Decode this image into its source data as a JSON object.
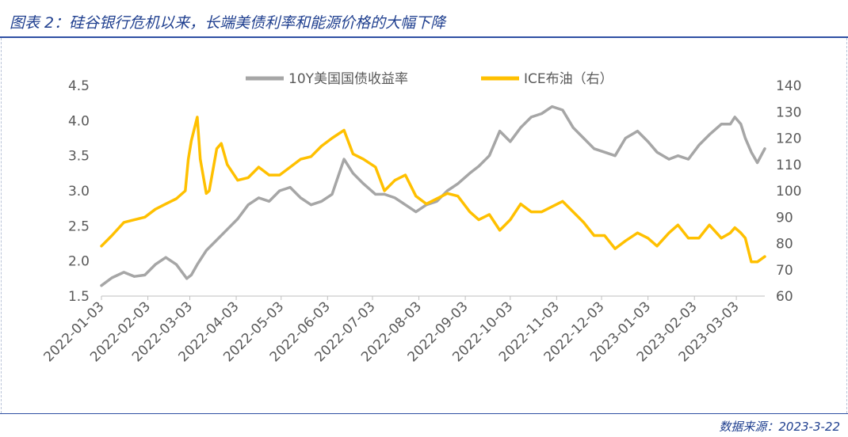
{
  "header": {
    "title": "图表 2：硅谷银行危机以来，长端美债利率和能源价格的大幅下降"
  },
  "footer": {
    "source": "数据来源：2023-3-22"
  },
  "colors": {
    "accent": "#2e4fa3",
    "treasury_series": "#a6a6a6",
    "oil_series": "#ffc000",
    "axis_text": "#595959"
  },
  "chart_data": {
    "type": "line",
    "legend_position": "top-center",
    "grid": false,
    "y_left": {
      "ylim": [
        1.5,
        4.5
      ],
      "ticks": [
        "1.5",
        "2.0",
        "2.5",
        "3.0",
        "3.5",
        "4.0",
        "4.5"
      ]
    },
    "y_right": {
      "ylim": [
        60,
        140
      ],
      "ticks": [
        "60",
        "70",
        "80",
        "90",
        "100",
        "110",
        "120",
        "130",
        "140"
      ]
    },
    "x_ticks": [
      "2022-01-03",
      "2022-02-03",
      "2022-03-03",
      "2022-04-03",
      "2022-05-03",
      "2022-06-03",
      "2022-07-03",
      "2022-08-03",
      "2022-09-03",
      "2022-10-03",
      "2022-11-03",
      "2022-12-03",
      "2023-01-03",
      "2023-02-03",
      "2023-03-03"
    ],
    "x_range": [
      "2022-01-03",
      "2023-03-22"
    ],
    "series": [
      {
        "name": "10Y美国国债收益率",
        "axis": "left",
        "color": "#a6a6a6",
        "x": [
          "2022-01-03",
          "2022-01-10",
          "2022-01-18",
          "2022-01-25",
          "2022-02-01",
          "2022-02-08",
          "2022-02-15",
          "2022-02-22",
          "2022-03-01",
          "2022-03-04",
          "2022-03-08",
          "2022-03-14",
          "2022-03-21",
          "2022-03-28",
          "2022-04-04",
          "2022-04-11",
          "2022-04-18",
          "2022-04-25",
          "2022-05-02",
          "2022-05-09",
          "2022-05-16",
          "2022-05-23",
          "2022-05-30",
          "2022-06-06",
          "2022-06-14",
          "2022-06-20",
          "2022-06-27",
          "2022-07-05",
          "2022-07-11",
          "2022-07-18",
          "2022-07-25",
          "2022-08-01",
          "2022-08-08",
          "2022-08-15",
          "2022-08-22",
          "2022-08-29",
          "2022-09-06",
          "2022-09-12",
          "2022-09-19",
          "2022-09-26",
          "2022-10-03",
          "2022-10-10",
          "2022-10-17",
          "2022-10-24",
          "2022-10-31",
          "2022-11-07",
          "2022-11-14",
          "2022-11-21",
          "2022-11-28",
          "2022-12-05",
          "2022-12-12",
          "2022-12-19",
          "2022-12-27",
          "2023-01-03",
          "2023-01-09",
          "2023-01-17",
          "2023-01-23",
          "2023-01-30",
          "2023-02-06",
          "2023-02-13",
          "2023-02-21",
          "2023-02-27",
          "2023-03-02",
          "2023-03-06",
          "2023-03-09",
          "2023-03-13",
          "2023-03-17",
          "2023-03-22"
        ],
        "values": [
          1.65,
          1.76,
          1.84,
          1.78,
          1.8,
          1.95,
          2.05,
          1.95,
          1.75,
          1.8,
          1.95,
          2.15,
          2.3,
          2.45,
          2.6,
          2.8,
          2.9,
          2.85,
          3.0,
          3.05,
          2.9,
          2.8,
          2.85,
          2.95,
          3.45,
          3.25,
          3.1,
          2.95,
          2.95,
          2.9,
          2.8,
          2.7,
          2.8,
          2.85,
          3.0,
          3.1,
          3.25,
          3.35,
          3.5,
          3.85,
          3.7,
          3.9,
          4.05,
          4.1,
          4.2,
          4.15,
          3.9,
          3.75,
          3.6,
          3.55,
          3.5,
          3.75,
          3.85,
          3.7,
          3.55,
          3.45,
          3.5,
          3.45,
          3.65,
          3.8,
          3.95,
          3.95,
          4.05,
          3.95,
          3.75,
          3.55,
          3.4,
          3.6
        ]
      },
      {
        "name": "ICE布油（右）",
        "axis": "right",
        "color": "#ffc000",
        "x": [
          "2022-01-03",
          "2022-01-10",
          "2022-01-18",
          "2022-01-25",
          "2022-02-01",
          "2022-02-08",
          "2022-02-15",
          "2022-02-22",
          "2022-02-28",
          "2022-03-02",
          "2022-03-04",
          "2022-03-08",
          "2022-03-10",
          "2022-03-14",
          "2022-03-16",
          "2022-03-21",
          "2022-03-24",
          "2022-03-28",
          "2022-04-04",
          "2022-04-11",
          "2022-04-18",
          "2022-04-25",
          "2022-05-02",
          "2022-05-09",
          "2022-05-16",
          "2022-05-23",
          "2022-05-30",
          "2022-06-06",
          "2022-06-14",
          "2022-06-20",
          "2022-06-27",
          "2022-07-05",
          "2022-07-11",
          "2022-07-18",
          "2022-07-25",
          "2022-08-01",
          "2022-08-08",
          "2022-08-15",
          "2022-08-22",
          "2022-08-29",
          "2022-09-06",
          "2022-09-12",
          "2022-09-19",
          "2022-09-26",
          "2022-10-03",
          "2022-10-10",
          "2022-10-17",
          "2022-10-24",
          "2022-10-31",
          "2022-11-07",
          "2022-11-14",
          "2022-11-21",
          "2022-11-28",
          "2022-12-05",
          "2022-12-12",
          "2022-12-19",
          "2022-12-27",
          "2023-01-03",
          "2023-01-09",
          "2023-01-17",
          "2023-01-23",
          "2023-01-30",
          "2023-02-06",
          "2023-02-13",
          "2023-02-21",
          "2023-02-27",
          "2023-03-02",
          "2023-03-06",
          "2023-03-09",
          "2023-03-13",
          "2023-03-17",
          "2023-03-22"
        ],
        "values": [
          79,
          83,
          88,
          89,
          90,
          93,
          95,
          97,
          100,
          112,
          119,
          128,
          112,
          99,
          100,
          116,
          118,
          110,
          104,
          105,
          109,
          106,
          106,
          109,
          112,
          113,
          117,
          120,
          123,
          114,
          112,
          109,
          100,
          104,
          106,
          98,
          95,
          97,
          99,
          98,
          92,
          89,
          91,
          85,
          89,
          95,
          92,
          92,
          94,
          96,
          92,
          88,
          83,
          83,
          78,
          81,
          84,
          82,
          79,
          84,
          87,
          82,
          82,
          87,
          82,
          84,
          86,
          84,
          82,
          73,
          73,
          75
        ]
      }
    ]
  }
}
